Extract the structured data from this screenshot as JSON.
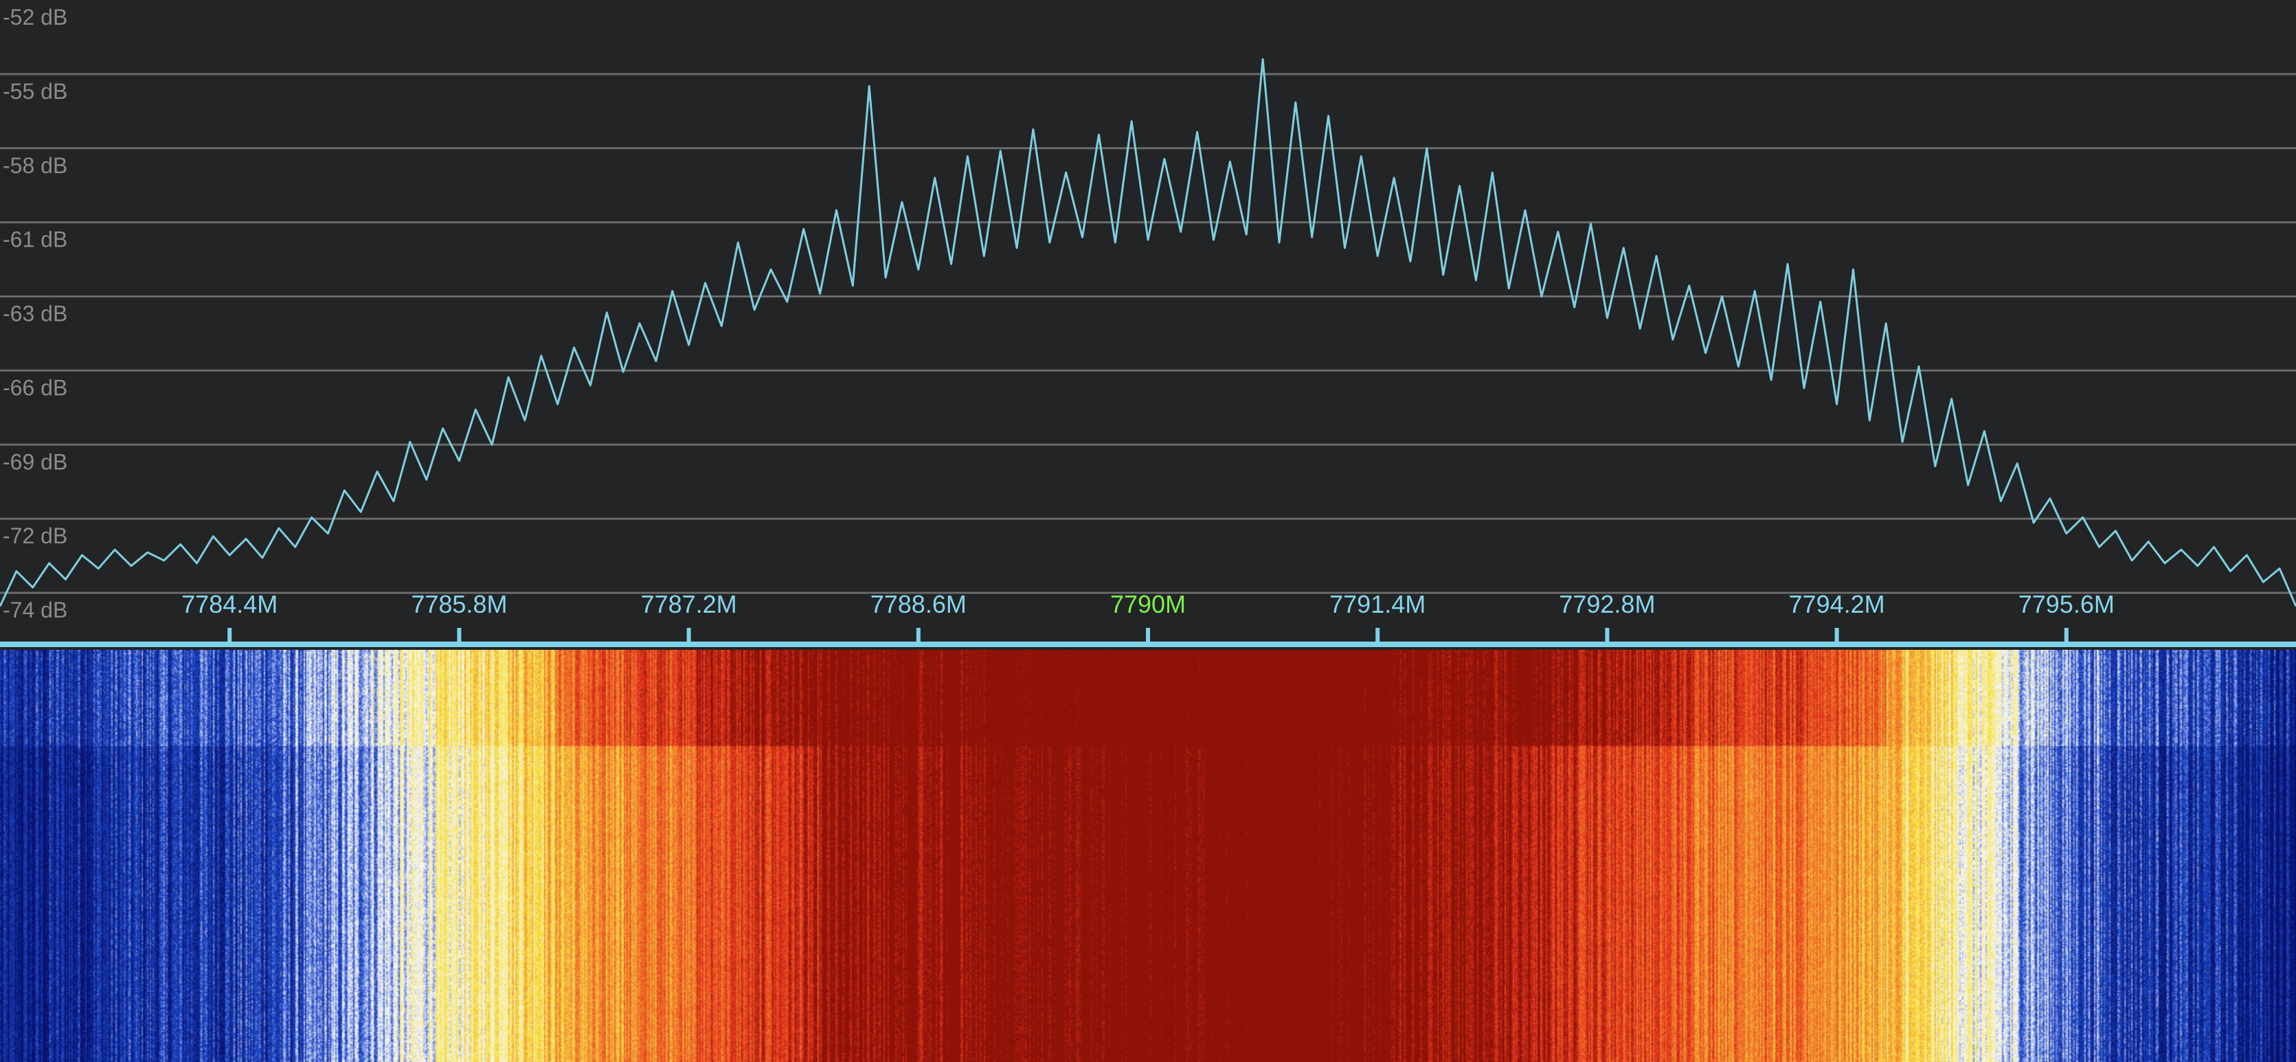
{
  "chart_data": {
    "type": "line",
    "title": "",
    "xlabel": "",
    "ylabel": "",
    "x_unit": "MHz",
    "xlim": [
      7783.0,
      7797.0
    ],
    "ylim": [
      -74,
      -52
    ],
    "grid": true,
    "y_ticks": [
      "-52 dB",
      "-55 dB",
      "-58 dB",
      "-61 dB",
      "-63 dB",
      "-66 dB",
      "-69 dB",
      "-72 dB",
      "-74 dB"
    ],
    "x_ticks": [
      {
        "value": 7784.4,
        "label": "7784.4M"
      },
      {
        "value": 7785.8,
        "label": "7785.8M"
      },
      {
        "value": 7787.2,
        "label": "7787.2M"
      },
      {
        "value": 7788.6,
        "label": "7788.6M"
      },
      {
        "value": 7790.0,
        "label": "7790M",
        "highlight": true
      },
      {
        "value": 7791.4,
        "label": "7791.4M"
      },
      {
        "value": 7792.8,
        "label": "7792.8M"
      },
      {
        "value": 7794.2,
        "label": "7794.2M"
      },
      {
        "value": 7795.6,
        "label": "7795.6M"
      }
    ],
    "x_start": 7783.0,
    "x_step": 0.1,
    "values": [
      -74.5,
      -73.2,
      -73.8,
      -72.9,
      -73.5,
      -72.6,
      -73.1,
      -72.4,
      -73.0,
      -72.5,
      -72.8,
      -72.2,
      -72.9,
      -71.9,
      -72.6,
      -72.0,
      -72.7,
      -71.6,
      -72.3,
      -71.2,
      -71.8,
      -70.2,
      -71.0,
      -69.5,
      -70.6,
      -68.4,
      -69.8,
      -67.9,
      -69.1,
      -67.2,
      -68.5,
      -66.0,
      -67.6,
      -65.2,
      -67.0,
      -64.9,
      -66.3,
      -63.6,
      -65.8,
      -64.0,
      -65.4,
      -62.8,
      -64.8,
      -62.5,
      -64.1,
      -61.0,
      -63.5,
      -62.0,
      -63.2,
      -60.5,
      -62.9,
      -59.8,
      -62.6,
      -55.2,
      -62.3,
      -59.5,
      -62.0,
      -58.6,
      -61.8,
      -57.8,
      -61.5,
      -57.6,
      -61.2,
      -56.8,
      -61.0,
      -58.4,
      -60.8,
      -57.0,
      -61.0,
      -56.5,
      -60.9,
      -57.9,
      -60.6,
      -56.9,
      -60.9,
      -58.0,
      -60.7,
      -54.2,
      -61.0,
      -55.8,
      -60.8,
      -56.3,
      -61.2,
      -57.8,
      -61.5,
      -58.6,
      -61.7,
      -57.5,
      -62.2,
      -58.9,
      -62.4,
      -58.4,
      -62.7,
      -59.8,
      -63.0,
      -60.6,
      -63.4,
      -60.3,
      -63.8,
      -61.2,
      -64.2,
      -61.5,
      -64.6,
      -62.6,
      -65.1,
      -63.0,
      -65.6,
      -62.8,
      -66.1,
      -61.8,
      -66.4,
      -63.2,
      -67.0,
      -62.0,
      -67.6,
      -64.0,
      -68.4,
      -65.6,
      -69.3,
      -66.8,
      -70.0,
      -68.0,
      -70.6,
      -69.2,
      -71.4,
      -70.5,
      -71.8,
      -71.2,
      -72.3,
      -71.7,
      -72.8,
      -72.1,
      -72.9,
      -72.4,
      -73.0,
      -72.3,
      -73.2,
      -72.6,
      -73.6,
      -73.1,
      -74.5
    ],
    "colors": {
      "background": "#232425",
      "grid": "#6b6b6b",
      "trace": "#7ecfe0",
      "axis": "#7dd3ea",
      "center_label": "#7ef04a"
    },
    "waterfall": {
      "colormap": [
        "#08126e",
        "#1e48c8",
        "#f4f6ff",
        "#f8e44a",
        "#f28a2e",
        "#e5381e",
        "#8e1208"
      ]
    }
  }
}
